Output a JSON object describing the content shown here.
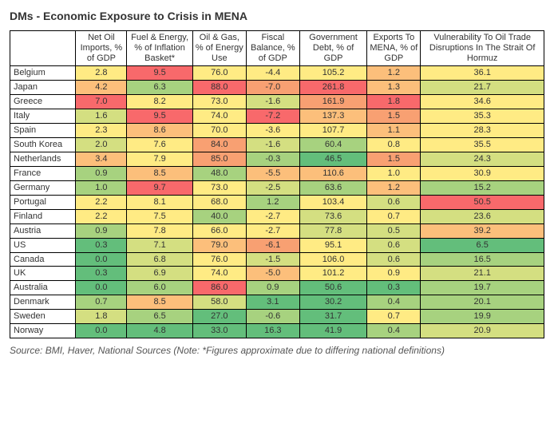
{
  "title": "DMs - Economic Exposure to Crisis in MENA",
  "source": "Source: BMI, Haver, National Sources (Note: *Figures approximate due to differing national definitions)",
  "colors": {
    "green": "#63be7b",
    "lgreen": "#a7d27f",
    "ygreen": "#d4df81",
    "yellow": "#ffeb84",
    "lred": "#fcbf7b",
    "mred": "#f8a072",
    "red": "#f8696b"
  },
  "columns": [
    "",
    "Net Oil Imports, % of GDP",
    "Fuel & Energy, % of Inflation Basket*",
    "Oil & Gas, % of Energy Use",
    "Fiscal Balance, % of GDP",
    "Government Debt, % of GDP",
    "Exports To MENA, % of GDP",
    "Vulnerability To Oil Trade Disruptions In The Strait Of Hormuz"
  ],
  "rows": [
    {
      "label": "Belgium",
      "cells": [
        {
          "v": "2.8",
          "c": "yellow"
        },
        {
          "v": "9.5",
          "c": "red"
        },
        {
          "v": "76.0",
          "c": "yellow"
        },
        {
          "v": "-4.4",
          "c": "yellow"
        },
        {
          "v": "105.2",
          "c": "yellow"
        },
        {
          "v": "1.2",
          "c": "lred"
        },
        {
          "v": "36.1",
          "c": "yellow"
        }
      ]
    },
    {
      "label": "Japan",
      "cells": [
        {
          "v": "4.2",
          "c": "lred"
        },
        {
          "v": "6.3",
          "c": "lgreen"
        },
        {
          "v": "88.0",
          "c": "red"
        },
        {
          "v": "-7.0",
          "c": "mred"
        },
        {
          "v": "261.8",
          "c": "red"
        },
        {
          "v": "1.3",
          "c": "lred"
        },
        {
          "v": "21.7",
          "c": "ygreen"
        }
      ]
    },
    {
      "label": "Greece",
      "cells": [
        {
          "v": "7.0",
          "c": "red"
        },
        {
          "v": "8.2",
          "c": "yellow"
        },
        {
          "v": "73.0",
          "c": "yellow"
        },
        {
          "v": "-1.6",
          "c": "ygreen"
        },
        {
          "v": "161.9",
          "c": "mred"
        },
        {
          "v": "1.8",
          "c": "red"
        },
        {
          "v": "34.6",
          "c": "yellow"
        }
      ]
    },
    {
      "label": "Italy",
      "cells": [
        {
          "v": "1.6",
          "c": "ygreen"
        },
        {
          "v": "9.5",
          "c": "red"
        },
        {
          "v": "74.0",
          "c": "yellow"
        },
        {
          "v": "-7.2",
          "c": "red"
        },
        {
          "v": "137.3",
          "c": "lred"
        },
        {
          "v": "1.5",
          "c": "mred"
        },
        {
          "v": "35.3",
          "c": "yellow"
        }
      ]
    },
    {
      "label": "Spain",
      "cells": [
        {
          "v": "2.3",
          "c": "yellow"
        },
        {
          "v": "8.6",
          "c": "lred"
        },
        {
          "v": "70.0",
          "c": "yellow"
        },
        {
          "v": "-3.6",
          "c": "yellow"
        },
        {
          "v": "107.7",
          "c": "yellow"
        },
        {
          "v": "1.1",
          "c": "lred"
        },
        {
          "v": "28.3",
          "c": "yellow"
        }
      ]
    },
    {
      "label": "South Korea",
      "cells": [
        {
          "v": "2.0",
          "c": "ygreen"
        },
        {
          "v": "7.6",
          "c": "yellow"
        },
        {
          "v": "84.0",
          "c": "mred"
        },
        {
          "v": "-1.6",
          "c": "ygreen"
        },
        {
          "v": "60.4",
          "c": "lgreen"
        },
        {
          "v": "0.8",
          "c": "yellow"
        },
        {
          "v": "35.5",
          "c": "yellow"
        }
      ]
    },
    {
      "label": "Netherlands",
      "cells": [
        {
          "v": "3.4",
          "c": "lred"
        },
        {
          "v": "7.9",
          "c": "yellow"
        },
        {
          "v": "85.0",
          "c": "mred"
        },
        {
          "v": "-0.3",
          "c": "lgreen"
        },
        {
          "v": "46.5",
          "c": "green"
        },
        {
          "v": "1.5",
          "c": "mred"
        },
        {
          "v": "24.3",
          "c": "ygreen"
        }
      ]
    },
    {
      "label": "France",
      "cells": [
        {
          "v": "0.9",
          "c": "lgreen"
        },
        {
          "v": "8.5",
          "c": "lred"
        },
        {
          "v": "48.0",
          "c": "lgreen"
        },
        {
          "v": "-5.5",
          "c": "lred"
        },
        {
          "v": "110.6",
          "c": "lred"
        },
        {
          "v": "1.0",
          "c": "yellow"
        },
        {
          "v": "30.9",
          "c": "yellow"
        }
      ]
    },
    {
      "label": "Germany",
      "cells": [
        {
          "v": "1.0",
          "c": "lgreen"
        },
        {
          "v": "9.7",
          "c": "red"
        },
        {
          "v": "73.0",
          "c": "yellow"
        },
        {
          "v": "-2.5",
          "c": "ygreen"
        },
        {
          "v": "63.6",
          "c": "lgreen"
        },
        {
          "v": "1.2",
          "c": "lred"
        },
        {
          "v": "15.2",
          "c": "lgreen"
        }
      ]
    },
    {
      "label": "Portugal",
      "cells": [
        {
          "v": "2.2",
          "c": "yellow"
        },
        {
          "v": "8.1",
          "c": "yellow"
        },
        {
          "v": "68.0",
          "c": "yellow"
        },
        {
          "v": "1.2",
          "c": "lgreen"
        },
        {
          "v": "103.4",
          "c": "yellow"
        },
        {
          "v": "0.6",
          "c": "ygreen"
        },
        {
          "v": "50.5",
          "c": "red"
        }
      ]
    },
    {
      "label": "Finland",
      "cells": [
        {
          "v": "2.2",
          "c": "yellow"
        },
        {
          "v": "7.5",
          "c": "yellow"
        },
        {
          "v": "40.0",
          "c": "lgreen"
        },
        {
          "v": "-2.7",
          "c": "yellow"
        },
        {
          "v": "73.6",
          "c": "ygreen"
        },
        {
          "v": "0.7",
          "c": "yellow"
        },
        {
          "v": "23.6",
          "c": "ygreen"
        }
      ]
    },
    {
      "label": "Austria",
      "cells": [
        {
          "v": "0.9",
          "c": "lgreen"
        },
        {
          "v": "7.8",
          "c": "yellow"
        },
        {
          "v": "66.0",
          "c": "yellow"
        },
        {
          "v": "-2.7",
          "c": "yellow"
        },
        {
          "v": "77.8",
          "c": "ygreen"
        },
        {
          "v": "0.5",
          "c": "ygreen"
        },
        {
          "v": "39.2",
          "c": "lred"
        }
      ]
    },
    {
      "label": "US",
      "cells": [
        {
          "v": "0.3",
          "c": "green"
        },
        {
          "v": "7.1",
          "c": "ygreen"
        },
        {
          "v": "79.0",
          "c": "lred"
        },
        {
          "v": "-6.1",
          "c": "mred"
        },
        {
          "v": "95.1",
          "c": "yellow"
        },
        {
          "v": "0.6",
          "c": "ygreen"
        },
        {
          "v": "6.5",
          "c": "green"
        }
      ]
    },
    {
      "label": "Canada",
      "cells": [
        {
          "v": "0.0",
          "c": "green"
        },
        {
          "v": "6.8",
          "c": "ygreen"
        },
        {
          "v": "76.0",
          "c": "yellow"
        },
        {
          "v": "-1.5",
          "c": "ygreen"
        },
        {
          "v": "106.0",
          "c": "yellow"
        },
        {
          "v": "0.6",
          "c": "ygreen"
        },
        {
          "v": "16.5",
          "c": "lgreen"
        }
      ]
    },
    {
      "label": "UK",
      "cells": [
        {
          "v": "0.3",
          "c": "green"
        },
        {
          "v": "6.9",
          "c": "ygreen"
        },
        {
          "v": "74.0",
          "c": "yellow"
        },
        {
          "v": "-5.0",
          "c": "lred"
        },
        {
          "v": "101.2",
          "c": "yellow"
        },
        {
          "v": "0.9",
          "c": "yellow"
        },
        {
          "v": "21.1",
          "c": "ygreen"
        }
      ]
    },
    {
      "label": "Australia",
      "cells": [
        {
          "v": "0.0",
          "c": "green"
        },
        {
          "v": "6.0",
          "c": "lgreen"
        },
        {
          "v": "86.0",
          "c": "red"
        },
        {
          "v": "0.9",
          "c": "lgreen"
        },
        {
          "v": "50.6",
          "c": "green"
        },
        {
          "v": "0.3",
          "c": "green"
        },
        {
          "v": "19.7",
          "c": "lgreen"
        }
      ]
    },
    {
      "label": "Denmark",
      "cells": [
        {
          "v": "0.7",
          "c": "lgreen"
        },
        {
          "v": "8.5",
          "c": "lred"
        },
        {
          "v": "58.0",
          "c": "ygreen"
        },
        {
          "v": "3.1",
          "c": "green"
        },
        {
          "v": "30.2",
          "c": "green"
        },
        {
          "v": "0.4",
          "c": "lgreen"
        },
        {
          "v": "20.1",
          "c": "lgreen"
        }
      ]
    },
    {
      "label": "Sweden",
      "cells": [
        {
          "v": "1.8",
          "c": "ygreen"
        },
        {
          "v": "6.5",
          "c": "lgreen"
        },
        {
          "v": "27.0",
          "c": "green"
        },
        {
          "v": "-0.6",
          "c": "lgreen"
        },
        {
          "v": "31.7",
          "c": "green"
        },
        {
          "v": "0.7",
          "c": "yellow"
        },
        {
          "v": "19.9",
          "c": "lgreen"
        }
      ]
    },
    {
      "label": "Norway",
      "cells": [
        {
          "v": "0.0",
          "c": "green"
        },
        {
          "v": "4.8",
          "c": "green"
        },
        {
          "v": "33.0",
          "c": "green"
        },
        {
          "v": "16.3",
          "c": "green"
        },
        {
          "v": "41.9",
          "c": "green"
        },
        {
          "v": "0.4",
          "c": "lgreen"
        },
        {
          "v": "20.9",
          "c": "ygreen"
        }
      ]
    }
  ]
}
